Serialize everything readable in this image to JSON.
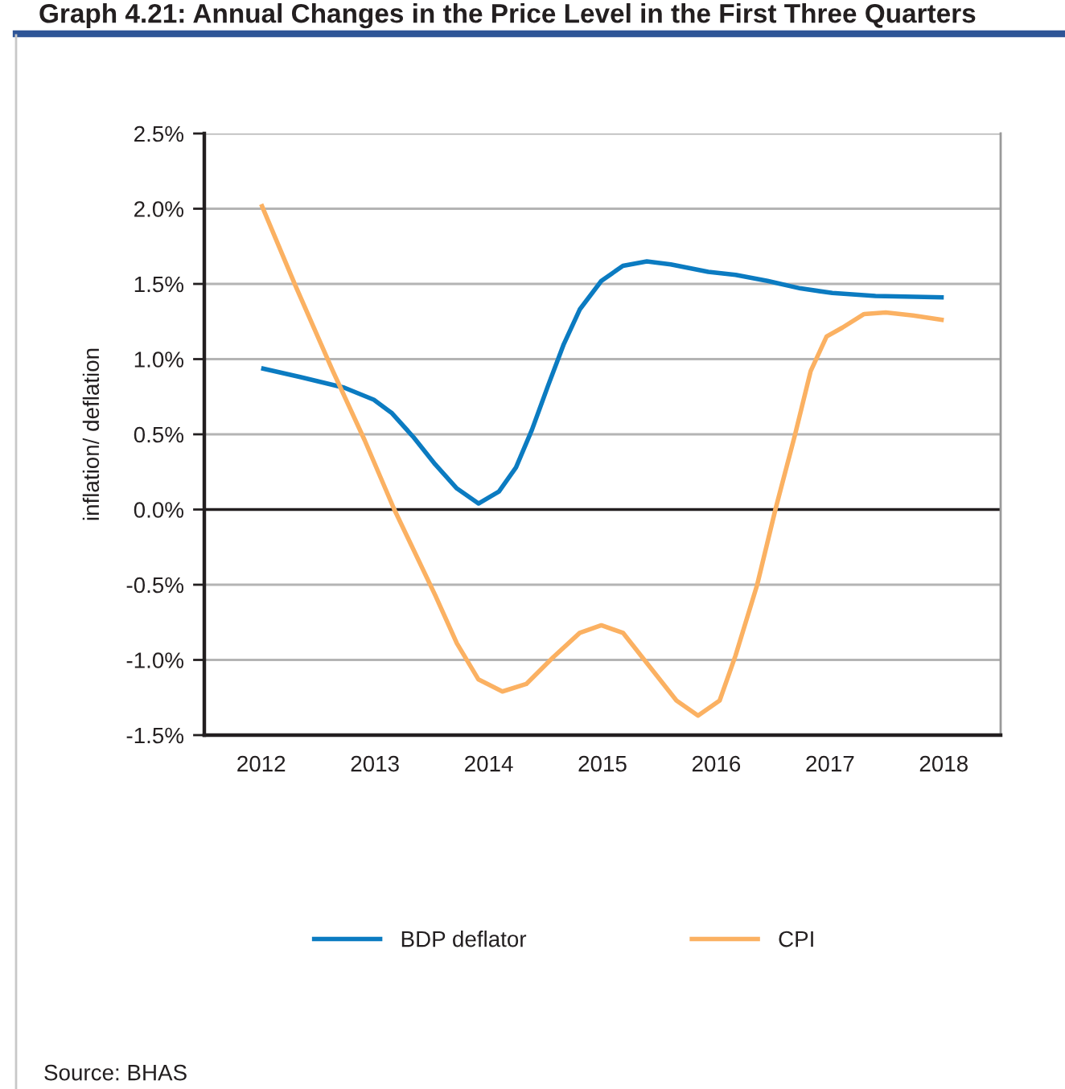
{
  "chart_data": {
    "type": "line",
    "title": "Graph 4.21: Annual Changes in the Price Level in the First Three Quarters",
    "ylabel": "inflation/ deflation",
    "series": [
      {
        "name": "BDP deflator",
        "color": "#0b7bc1",
        "x": [
          2012.0,
          2012.35,
          2012.73,
          2012.99,
          2013.15,
          2013.34,
          2013.53,
          2013.72,
          2013.91,
          2014.09,
          2014.24,
          2014.38,
          2014.52,
          2014.66,
          2014.8,
          2014.99,
          2015.18,
          2015.39,
          2015.6,
          2015.93,
          2016.17,
          2016.45,
          2016.74,
          2017.02,
          2017.4,
          2018.0
        ],
        "values": [
          0.94,
          0.88,
          0.81,
          0.73,
          0.64,
          0.48,
          0.3,
          0.14,
          0.04,
          0.12,
          0.28,
          0.53,
          0.82,
          1.1,
          1.33,
          1.52,
          1.62,
          1.65,
          1.63,
          1.58,
          1.56,
          1.52,
          1.47,
          1.44,
          1.42,
          1.41
        ]
      },
      {
        "name": "CPI",
        "color": "#fbb162",
        "x": [
          2012.0,
          2012.3,
          2012.63,
          2012.91,
          2013.17,
          2013.53,
          2013.72,
          2013.91,
          2014.12,
          2014.33,
          2014.57,
          2014.8,
          2014.99,
          2015.18,
          2015.41,
          2015.65,
          2015.84,
          2016.03,
          2016.17,
          2016.36,
          2016.52,
          2016.69,
          2016.83,
          2016.97,
          2017.11,
          2017.3,
          2017.49,
          2017.73,
          2018.0
        ],
        "values": [
          2.03,
          1.49,
          0.92,
          0.46,
          0.0,
          -0.57,
          -0.89,
          -1.13,
          -1.21,
          -1.16,
          -0.98,
          -0.82,
          -0.77,
          -0.82,
          -1.04,
          -1.27,
          -1.37,
          -1.27,
          -0.97,
          -0.5,
          0.0,
          0.49,
          0.92,
          1.15,
          1.21,
          1.3,
          1.31,
          1.29,
          1.26
        ]
      }
    ],
    "xlim": [
      2011.5,
      2018.5
    ],
    "xticks": [
      2012,
      2013,
      2014,
      2015,
      2016,
      2017,
      2018
    ],
    "ylim": [
      -1.5,
      2.5
    ],
    "yticks": [
      {
        "value": -1.5,
        "label": "-1.5%"
      },
      {
        "value": -1.0,
        "label": "-1.0%"
      },
      {
        "value": -0.5,
        "label": "-0.5%"
      },
      {
        "value": 0.0,
        "label": "0.0%"
      },
      {
        "value": 0.5,
        "label": "0.5%"
      },
      {
        "value": 1.0,
        "label": "1.0%"
      },
      {
        "value": 1.5,
        "label": "1.5%"
      },
      {
        "value": 2.0,
        "label": "2.0%"
      },
      {
        "value": 2.5,
        "label": "2.5%"
      }
    ],
    "ref_lines": [
      {
        "axis": "y",
        "value": 0,
        "color": "#231f20"
      }
    ],
    "grid": "y",
    "legend": "bottom",
    "line_style": "solid",
    "annotations": [
      "Source: BHAS"
    ]
  }
}
